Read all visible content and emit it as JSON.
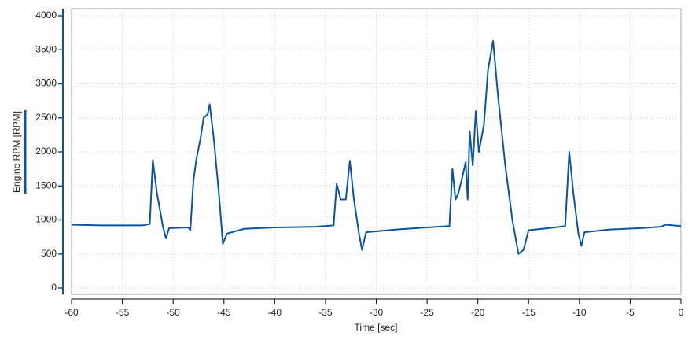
{
  "chart_data": {
    "type": "line",
    "x_label": "Time [sec]",
    "y_label": "Engine RPM [RPM]",
    "x": [
      -60,
      -57,
      -53,
      -52.3,
      -52.0,
      -51.6,
      -51.0,
      -50.7,
      -50.4,
      -48.5,
      -48.3,
      -48.0,
      -47.7,
      -47.3,
      -47.0,
      -46.6,
      -46.4,
      -46.0,
      -45.5,
      -45.1,
      -44.7,
      -43,
      -40,
      -36,
      -34.2,
      -33.9,
      -33.5,
      -33.0,
      -32.6,
      -32.2,
      -31.7,
      -31.4,
      -31.0,
      -28,
      -25,
      -22.8,
      -22.5,
      -22.2,
      -21.9,
      -21.5,
      -21.2,
      -21.0,
      -20.8,
      -20.5,
      -20.2,
      -19.9,
      -19.4,
      -19.0,
      -18.5,
      -18.0,
      -17.3,
      -16.6,
      -16.0,
      -15.5,
      -15.0,
      -13,
      -11.4,
      -11.0,
      -10.6,
      -10.1,
      -9.8,
      -9.5,
      -7,
      -4,
      -2,
      -1.5,
      0
    ],
    "series": [
      {
        "name": "Engine RPM",
        "color": "#0b54a0",
        "values": [
          930,
          920,
          920,
          940,
          1880,
          1400,
          900,
          730,
          880,
          890,
          850,
          1580,
          1900,
          2200,
          2500,
          2550,
          2700,
          2200,
          1400,
          650,
          800,
          870,
          890,
          900,
          920,
          1530,
          1300,
          1300,
          1870,
          1300,
          800,
          560,
          820,
          860,
          890,
          910,
          1750,
          1300,
          1400,
          1650,
          1850,
          1300,
          2300,
          1800,
          2600,
          2000,
          2400,
          3200,
          3630,
          2800,
          1800,
          1000,
          500,
          560,
          850,
          880,
          910,
          2000,
          1400,
          800,
          620,
          820,
          860,
          880,
          900,
          930,
          910
        ]
      }
    ],
    "xlim": [
      -60,
      0
    ],
    "xticks": [
      -60,
      -55,
      -50,
      -45,
      -40,
      -35,
      -30,
      -25,
      -20,
      -15,
      -10,
      -5,
      0
    ],
    "ylim": [
      0,
      4000
    ],
    "yticks": [
      0,
      500,
      1000,
      1500,
      2000,
      2500,
      3000,
      3500,
      4000
    ],
    "grid": true
  }
}
